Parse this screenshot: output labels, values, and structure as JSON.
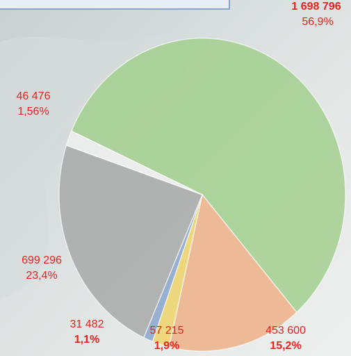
{
  "chart_data": {
    "type": "pie",
    "categories": [
      null,
      null,
      null,
      null,
      null,
      null
    ],
    "values": [
      1698796,
      453600,
      57215,
      31482,
      699296,
      46476
    ],
    "value_labels": [
      "1 698 796",
      "453 600",
      "57 215",
      "31 482",
      "699 296",
      "46 476"
    ],
    "percent_labels": [
      "56,9%",
      "15,2%",
      "1,9%",
      "1,1%",
      "23,4%",
      "1,56%"
    ],
    "colors": [
      "#a3cf8f",
      "#efb088",
      "#eed36a",
      "#8aa6cc",
      "#a7a9a8",
      "#eef0ee"
    ]
  }
}
